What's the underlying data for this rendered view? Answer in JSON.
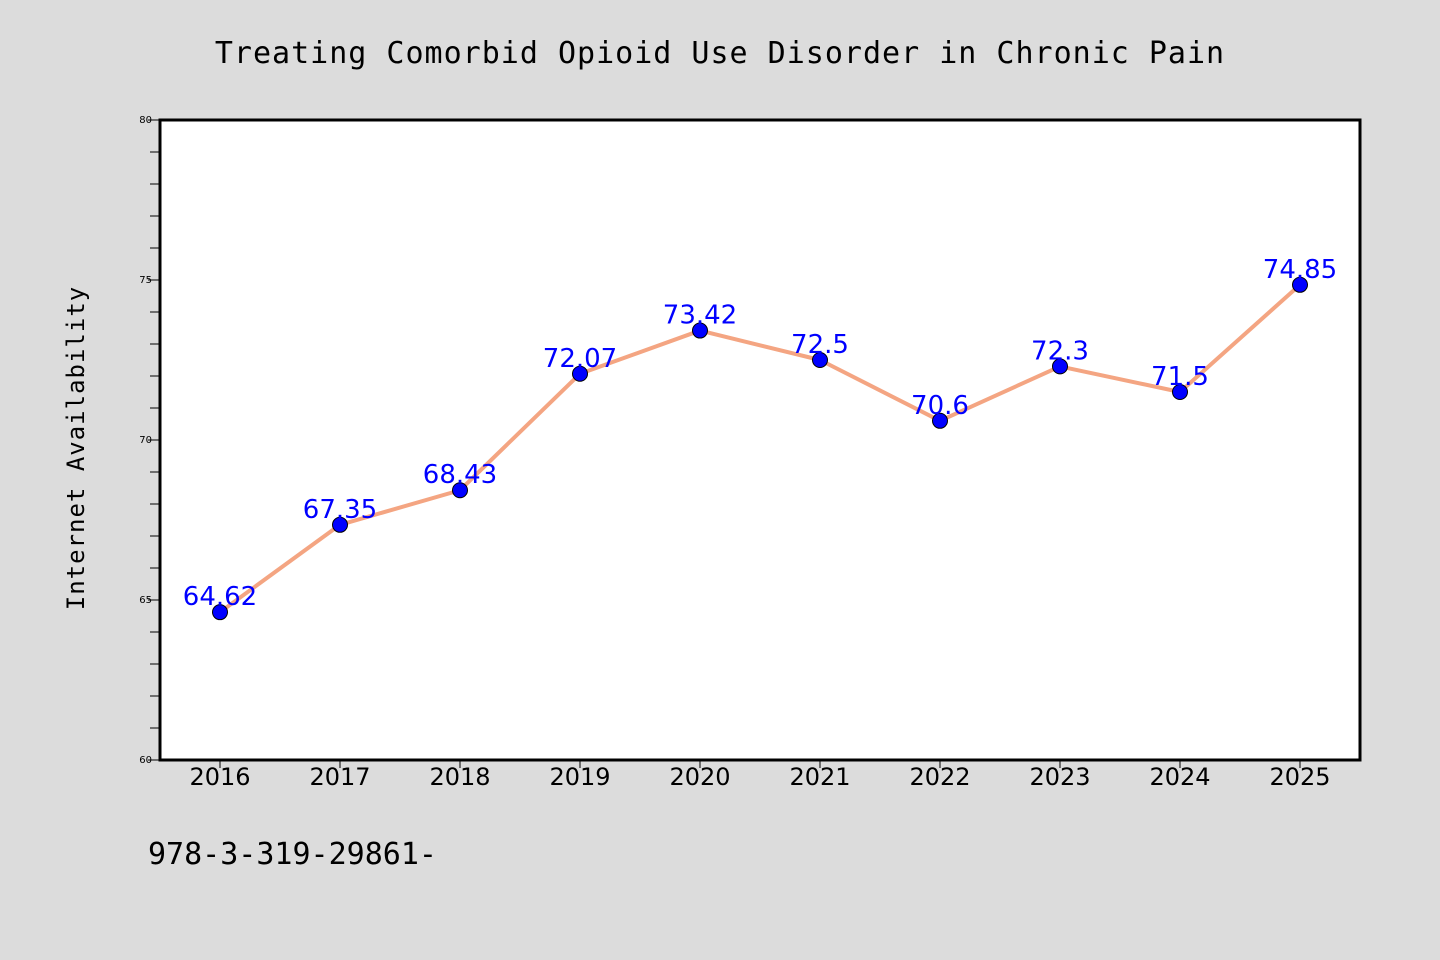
{
  "chart_data": {
    "type": "line",
    "title": "Treating Comorbid Opioid Use Disorder in Chronic Pain",
    "xlabel": "",
    "ylabel": "Internet Availability",
    "categories": [
      "2016",
      "2017",
      "2018",
      "2019",
      "2020",
      "2021",
      "2022",
      "2023",
      "2024",
      "2025"
    ],
    "series": [
      {
        "values": [
          64.62,
          67.35,
          68.43,
          72.07,
          73.42,
          72.5,
          70.6,
          72.3,
          71.5,
          74.85
        ]
      }
    ],
    "data_labels": [
      "64.62",
      "67.35",
      "68.43",
      "72.07",
      "73.42",
      "72.5",
      "70.6",
      "72.3",
      "71.5",
      "74.85"
    ],
    "ylim": [
      60,
      80
    ],
    "yticks": [
      "60",
      "65",
      "70",
      "75",
      "80"
    ],
    "grid": false,
    "legend": "none"
  },
  "footnote": "978-3-319-29861-",
  "colors": {
    "background": "#dcdcdc",
    "plot_background": "#ffffff",
    "line": "#f4a582",
    "marker": "#0000ff",
    "data_label": "#0000ff"
  }
}
